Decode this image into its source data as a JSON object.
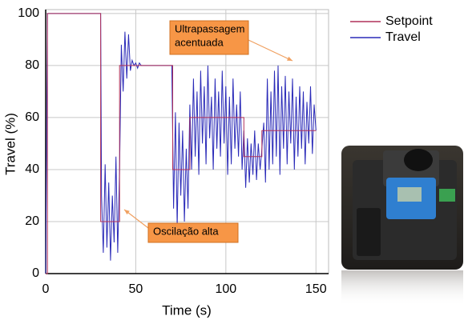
{
  "chart_data": {
    "type": "line",
    "xlabel": "Time (s)",
    "ylabel": "Travel (%)",
    "xlim": [
      0,
      157
    ],
    "ylim": [
      0,
      101.5
    ],
    "xticks": [
      0,
      50,
      100,
      150
    ],
    "yticks": [
      0,
      20,
      40,
      60,
      80,
      100
    ],
    "grid": true,
    "series": [
      {
        "name": "Setpoint",
        "color": "#b0305a",
        "x": [
          0,
          1,
          1,
          30.5,
          30.5,
          41,
          41,
          70.5,
          70.5,
          80,
          80,
          110,
          110,
          120,
          120,
          150
        ],
        "values": [
          0,
          0,
          100,
          100,
          20,
          20,
          80,
          80,
          40,
          40,
          60,
          60,
          45,
          45,
          55,
          55
        ]
      },
      {
        "name": "Travel",
        "color": "#2a2ab8",
        "x": [
          0,
          1,
          30,
          30.5,
          31,
          32,
          33,
          34,
          35,
          36,
          37,
          38,
          39,
          40,
          41,
          42,
          43,
          44,
          45,
          46,
          47,
          48,
          49,
          50,
          51,
          52,
          53,
          55,
          60,
          65,
          70,
          71,
          72,
          73,
          74,
          75,
          76,
          77,
          78,
          79,
          80,
          81,
          82,
          83,
          84,
          85,
          86,
          87,
          88,
          89,
          90,
          91,
          92,
          93,
          94,
          95,
          96,
          97,
          98,
          99,
          100,
          101,
          102,
          103,
          104,
          105,
          106,
          107,
          108,
          109,
          110,
          111,
          112,
          113,
          114,
          115,
          116,
          117,
          118,
          119,
          120,
          121,
          122,
          123,
          124,
          125,
          126,
          127,
          128,
          129,
          130,
          131,
          132,
          133,
          134,
          135,
          136,
          137,
          138,
          139,
          140,
          141,
          142,
          143,
          144,
          145,
          146,
          147,
          148,
          149,
          150
        ],
        "values": [
          0,
          100,
          100,
          100,
          30,
          8,
          42,
          10,
          35,
          5,
          30,
          12,
          45,
          8,
          40,
          88,
          70,
          93,
          75,
          92,
          78,
          82,
          80,
          81,
          79,
          81,
          80,
          80,
          80,
          80,
          80,
          25,
          62,
          18,
          58,
          30,
          55,
          20,
          48,
          25,
          65,
          40,
          75,
          45,
          70,
          38,
          78,
          50,
          72,
          42,
          80,
          52,
          68,
          40,
          75,
          48,
          70,
          45,
          78,
          50,
          72,
          38,
          68,
          42,
          75,
          48,
          65,
          45,
          70,
          40,
          55,
          33,
          52,
          35,
          50,
          38,
          55,
          36,
          50,
          40,
          48,
          58,
          35,
          75,
          40,
          70,
          42,
          78,
          45,
          80,
          38,
          72,
          48,
          76,
          42,
          70,
          50,
          75,
          40,
          68,
          45,
          72,
          48,
          70,
          42,
          66,
          50,
          72,
          46,
          65,
          55
        ]
      }
    ],
    "annotations": [
      {
        "lines": [
          "Ultrapassagem",
          "acentuada"
        ]
      },
      {
        "lines": [
          "Oscilação alta"
        ]
      }
    ]
  }
}
